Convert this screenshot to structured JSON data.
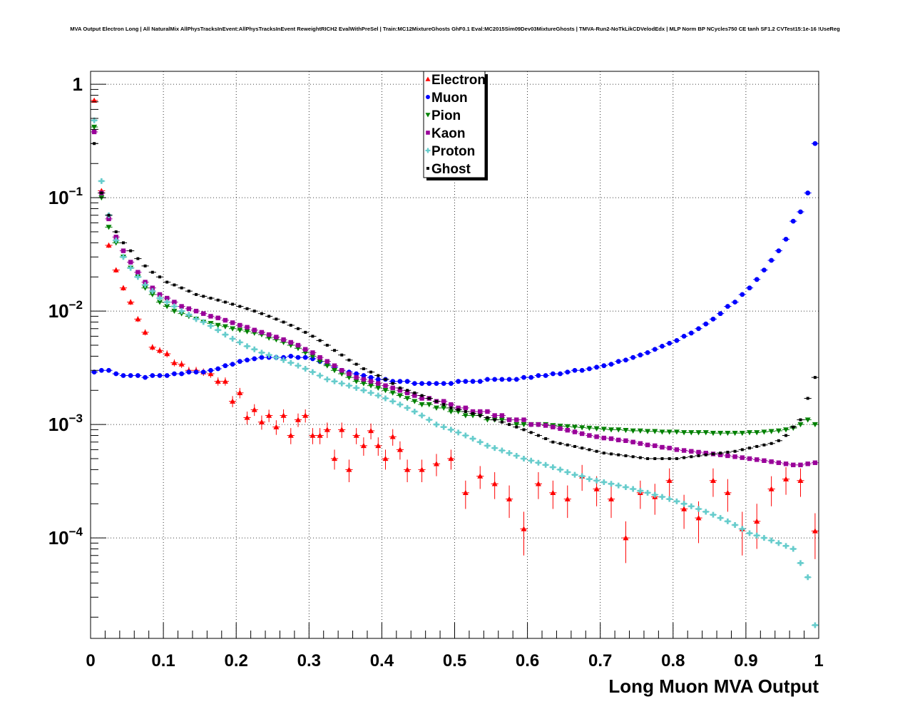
{
  "chart_data": {
    "type": "scatter",
    "title": "MVA Output Electron Long | All NaturalMix AllPhysTracksInEvent:AllPhysTracksInEvent ReweightRICH2 EvalWithPreSel | Train:MC12MixtureGhosts GhF0.1 Eval:MC2015Sim09Dev03MixtureGhosts | TMVA-Run2-NoTkLikCDVelodEdx | MLP Norm BP NCycles750 CE tanh SF1.2 CVTest15:1e-16 !UseReg",
    "xlabel": "Long Muon MVA Output",
    "ylabel": "",
    "xlim": [
      0,
      1
    ],
    "ylim": [
      1.3e-05,
      1.3
    ],
    "y_scale": "log",
    "grid": true,
    "legend_position": "top-center",
    "x_ticks": [
      "0",
      "0.1",
      "0.2",
      "0.3",
      "0.4",
      "0.5",
      "0.6",
      "0.7",
      "0.8",
      "0.9",
      "1"
    ],
    "y_ticks": [
      {
        "value": 1,
        "base": "1",
        "exp": ""
      },
      {
        "value": 0.1,
        "base": "10",
        "exp": "−1"
      },
      {
        "value": 0.01,
        "base": "10",
        "exp": "−2"
      },
      {
        "value": 0.001,
        "base": "10",
        "exp": "−3"
      },
      {
        "value": 0.0001,
        "base": "10",
        "exp": "−4"
      }
    ],
    "series": [
      {
        "name": "Electron",
        "color": "#ff0000",
        "marker": "triangle-up",
        "bins": [
          0,
          1,
          2,
          3,
          4,
          5,
          6,
          7,
          8,
          9,
          10,
          11,
          12,
          13,
          14,
          15,
          16,
          17,
          18,
          19,
          20,
          21,
          22,
          23,
          24,
          25,
          26,
          27,
          28,
          29,
          30,
          31,
          32,
          33,
          34,
          35,
          36,
          37,
          38,
          39,
          40,
          41,
          42,
          43,
          45,
          47,
          49,
          51,
          53,
          55,
          57,
          59,
          61,
          63,
          65,
          67,
          69,
          71,
          73,
          75,
          77,
          79,
          81,
          83,
          85,
          87,
          89,
          91,
          93,
          95,
          97,
          99
        ],
        "values": [
          0.72,
          0.115,
          0.038,
          0.023,
          0.016,
          0.012,
          0.0085,
          0.0065,
          0.0048,
          0.0045,
          0.0042,
          0.0035,
          0.0034,
          0.003,
          0.003,
          0.0029,
          0.0028,
          0.0024,
          0.0024,
          0.0016,
          0.0019,
          0.00115,
          0.00135,
          0.00105,
          0.0012,
          0.00095,
          0.0012,
          0.0008,
          0.0011,
          0.0012,
          0.0008,
          0.0008,
          0.0009,
          0.0005,
          0.0009,
          0.0004,
          0.0008,
          0.00065,
          0.00088,
          0.00065,
          0.0005,
          0.00078,
          0.0006,
          0.0004,
          0.0004,
          0.00045,
          0.0005,
          0.00025,
          0.00035,
          0.0003,
          0.00022,
          0.00012,
          0.0003,
          0.00025,
          0.00022,
          0.00035,
          0.00027,
          0.00022,
          0.0001,
          0.00025,
          0.00023,
          0.00032,
          0.00018,
          0.00015,
          0.00032,
          0.00025,
          0.00012,
          0.00014,
          0.00027,
          0.00033,
          0.00032,
          0.000115
        ],
        "errors": [
          0.02,
          0.005,
          0.002,
          0.0012,
          0.0009,
          0.0007,
          0.0005,
          0.0004,
          0.0003,
          0.0003,
          0.0003,
          0.00025,
          0.00025,
          0.00022,
          0.00022,
          0.00022,
          0.00022,
          0.0002,
          0.0002,
          0.00018,
          0.0002,
          0.00015,
          0.00016,
          0.00015,
          0.00015,
          0.00014,
          0.00016,
          0.00013,
          0.00015,
          0.00016,
          0.00013,
          0.00013,
          0.00014,
          0.0001,
          0.00014,
          9e-05,
          0.00013,
          0.00012,
          0.00014,
          0.00012,
          0.0001,
          0.00013,
          0.00011,
          9e-05,
          9e-05,
          0.0001,
          0.0001,
          7e-05,
          8e-05,
          8e-05,
          7e-05,
          5e-05,
          8e-05,
          7e-05,
          7e-05,
          9e-05,
          8e-05,
          7e-05,
          4e-05,
          7e-05,
          7e-05,
          9e-05,
          6e-05,
          6e-05,
          9e-05,
          8e-05,
          5e-05,
          6e-05,
          8e-05,
          9e-05,
          9e-05,
          5e-05
        ]
      },
      {
        "name": "Muon",
        "color": "#0000ff",
        "marker": "circle",
        "bins": "all",
        "values": [
          0.0029,
          0.003,
          0.003,
          0.0028,
          0.0027,
          0.0027,
          0.0027,
          0.0026,
          0.0027,
          0.0027,
          0.0027,
          0.0028,
          0.0028,
          0.0029,
          0.0029,
          0.0029,
          0.003,
          0.0031,
          0.0033,
          0.0034,
          0.0036,
          0.0037,
          0.0038,
          0.0039,
          0.0039,
          0.0039,
          0.0039,
          0.004,
          0.0039,
          0.0039,
          0.0038,
          0.0036,
          0.0034,
          0.0032,
          0.003,
          0.0029,
          0.0028,
          0.0027,
          0.0026,
          0.0025,
          0.0025,
          0.0024,
          0.0024,
          0.0024,
          0.0023,
          0.0023,
          0.0023,
          0.0023,
          0.0023,
          0.0023,
          0.0024,
          0.0024,
          0.0024,
          0.0024,
          0.0025,
          0.0025,
          0.0025,
          0.0025,
          0.0025,
          0.0026,
          0.0026,
          0.0027,
          0.0027,
          0.0028,
          0.0028,
          0.0029,
          0.003,
          0.003,
          0.0031,
          0.0032,
          0.0033,
          0.0034,
          0.0036,
          0.0037,
          0.0039,
          0.0041,
          0.0043,
          0.0046,
          0.0049,
          0.0052,
          0.0055,
          0.006,
          0.0064,
          0.007,
          0.0077,
          0.0085,
          0.0095,
          0.011,
          0.012,
          0.014,
          0.016,
          0.019,
          0.023,
          0.028,
          0.034,
          0.043,
          0.062,
          0.075,
          0.11,
          0.3
        ]
      },
      {
        "name": "Pion",
        "color": "#008000",
        "marker": "triangle-down",
        "bins": "all",
        "values": [
          0.42,
          0.1,
          0.055,
          0.04,
          0.03,
          0.024,
          0.02,
          0.016,
          0.014,
          0.012,
          0.011,
          0.01,
          0.0095,
          0.009,
          0.0085,
          0.008,
          0.0078,
          0.0075,
          0.0073,
          0.007,
          0.0068,
          0.0066,
          0.0064,
          0.0062,
          0.0058,
          0.0056,
          0.0053,
          0.005,
          0.0047,
          0.0043,
          0.004,
          0.0036,
          0.0033,
          0.003,
          0.0028,
          0.0026,
          0.0024,
          0.0023,
          0.0022,
          0.0021,
          0.002,
          0.0019,
          0.0018,
          0.0017,
          0.0016,
          0.0015,
          0.0015,
          0.0014,
          0.0014,
          0.0013,
          0.0013,
          0.0012,
          0.0012,
          0.0012,
          0.0011,
          0.0011,
          0.0011,
          0.0011,
          0.001,
          0.001,
          0.001,
          0.001,
          0.001,
          0.00098,
          0.00097,
          0.00096,
          0.00095,
          0.00094,
          0.00093,
          0.00092,
          0.00091,
          0.0009,
          0.0009,
          0.00089,
          0.00088,
          0.00088,
          0.00087,
          0.00087,
          0.00086,
          0.00086,
          0.00086,
          0.00085,
          0.00085,
          0.00085,
          0.00085,
          0.00084,
          0.00084,
          0.00084,
          0.00084,
          0.00084,
          0.00085,
          0.00085,
          0.00086,
          0.00087,
          0.00088,
          0.0009,
          0.00093,
          0.001,
          0.0011,
          0.001
        ]
      },
      {
        "name": "Kaon",
        "color": "#990099",
        "marker": "square",
        "bins": "all",
        "values": [
          0.38,
          0.11,
          0.065,
          0.045,
          0.034,
          0.027,
          0.022,
          0.018,
          0.016,
          0.014,
          0.013,
          0.012,
          0.011,
          0.0105,
          0.01,
          0.0095,
          0.009,
          0.0087,
          0.0083,
          0.0079,
          0.0075,
          0.0072,
          0.0068,
          0.0065,
          0.0062,
          0.0059,
          0.0056,
          0.0053,
          0.005,
          0.0046,
          0.0043,
          0.0039,
          0.0036,
          0.0033,
          0.003,
          0.0028,
          0.0026,
          0.0025,
          0.0024,
          0.0023,
          0.0022,
          0.0021,
          0.002,
          0.0019,
          0.0018,
          0.0017,
          0.0017,
          0.0016,
          0.0016,
          0.0015,
          0.0014,
          0.0014,
          0.0013,
          0.0013,
          0.0013,
          0.0012,
          0.0012,
          0.0011,
          0.0011,
          0.0011,
          0.001,
          0.001,
          0.00098,
          0.00095,
          0.00092,
          0.00089,
          0.00086,
          0.00083,
          0.0008,
          0.00078,
          0.00076,
          0.00075,
          0.00073,
          0.00072,
          0.0007,
          0.00068,
          0.00066,
          0.00065,
          0.00063,
          0.00062,
          0.0006,
          0.00059,
          0.00058,
          0.00057,
          0.00056,
          0.00055,
          0.00054,
          0.00053,
          0.00052,
          0.00051,
          0.0005,
          0.00049,
          0.00048,
          0.00047,
          0.00046,
          0.00045,
          0.00044,
          0.00044,
          0.00045,
          0.00046
        ]
      },
      {
        "name": "Proton",
        "color": "#66cccc",
        "marker": "cross",
        "bins": "all",
        "values": [
          0.48,
          0.14,
          0.07,
          0.042,
          0.03,
          0.024,
          0.02,
          0.017,
          0.015,
          0.013,
          0.012,
          0.011,
          0.01,
          0.0093,
          0.0085,
          0.008,
          0.0074,
          0.0068,
          0.0062,
          0.0057,
          0.0053,
          0.0049,
          0.0046,
          0.0043,
          0.0041,
          0.0039,
          0.0037,
          0.0035,
          0.0033,
          0.0031,
          0.0029,
          0.0027,
          0.0025,
          0.0024,
          0.0023,
          0.0022,
          0.0021,
          0.002,
          0.0019,
          0.0018,
          0.0017,
          0.0016,
          0.0015,
          0.0014,
          0.0013,
          0.0012,
          0.0011,
          0.001,
          0.00095,
          0.0009,
          0.00085,
          0.0008,
          0.00075,
          0.0007,
          0.00065,
          0.00062,
          0.00059,
          0.00056,
          0.00053,
          0.0005,
          0.00048,
          0.00046,
          0.00044,
          0.00042,
          0.0004,
          0.00038,
          0.00036,
          0.00035,
          0.00033,
          0.00032,
          0.00031,
          0.0003,
          0.00029,
          0.00028,
          0.00027,
          0.00026,
          0.00025,
          0.00024,
          0.00023,
          0.00022,
          0.00021,
          0.0002,
          0.00019,
          0.00018,
          0.00017,
          0.00016,
          0.00015,
          0.00014,
          0.00013,
          0.00012,
          0.00011,
          0.000105,
          0.0001,
          9.5e-05,
          9e-05,
          8.5e-05,
          8e-05,
          6e-05,
          4.5e-05,
          1.7e-05
        ]
      },
      {
        "name": "Ghost",
        "color": "#000000",
        "marker": "small",
        "bins": "all",
        "values": [
          0.3,
          0.11,
          0.07,
          0.05,
          0.04,
          0.034,
          0.029,
          0.025,
          0.022,
          0.02,
          0.018,
          0.017,
          0.016,
          0.015,
          0.014,
          0.0135,
          0.013,
          0.0125,
          0.012,
          0.0115,
          0.011,
          0.0105,
          0.01,
          0.0095,
          0.009,
          0.0085,
          0.008,
          0.0075,
          0.007,
          0.0065,
          0.006,
          0.0055,
          0.005,
          0.0045,
          0.0041,
          0.0037,
          0.0034,
          0.0031,
          0.0029,
          0.0027,
          0.0025,
          0.0023,
          0.0021,
          0.002,
          0.0019,
          0.0018,
          0.0017,
          0.0016,
          0.0015,
          0.0014,
          0.00135,
          0.0013,
          0.00125,
          0.0012,
          0.00115,
          0.0011,
          0.00105,
          0.001,
          0.00095,
          0.0009,
          0.00085,
          0.0008,
          0.00075,
          0.0007,
          0.00068,
          0.00066,
          0.00064,
          0.00062,
          0.0006,
          0.00058,
          0.00056,
          0.00055,
          0.00054,
          0.00053,
          0.00052,
          0.00051,
          0.0005,
          0.0005,
          0.0005,
          0.0005,
          0.0005,
          0.00051,
          0.00052,
          0.00053,
          0.00054,
          0.00055,
          0.00056,
          0.00057,
          0.00058,
          0.0006,
          0.00062,
          0.00064,
          0.00066,
          0.00068,
          0.00072,
          0.0008,
          0.00095,
          0.0011,
          0.0017,
          0.0026
        ]
      }
    ]
  }
}
